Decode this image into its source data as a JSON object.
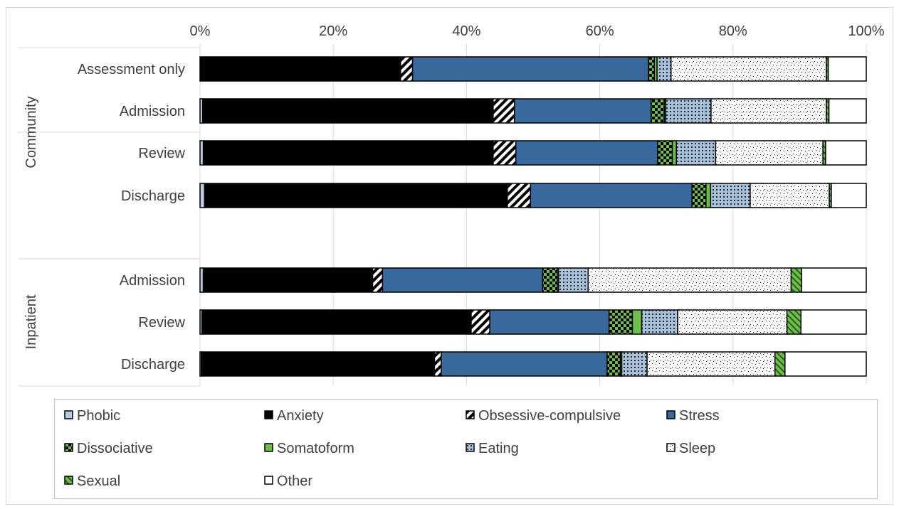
{
  "chart_data": {
    "type": "bar",
    "orientation": "horizontal",
    "stacked": "percent",
    "xlim": [
      0,
      100
    ],
    "x_ticks": [
      "0%",
      "20%",
      "40%",
      "60%",
      "80%",
      "100%"
    ],
    "grid": true,
    "legend_position": "bottom",
    "groups": [
      {
        "label": "Community",
        "categories": [
          "Assessment only",
          "Admission",
          "Review",
          "Discharge"
        ]
      },
      {
        "label": "Inpatient",
        "categories": [
          "Admission",
          "Review",
          "Discharge"
        ]
      }
    ],
    "categories": [
      "Assessment only",
      "Admission",
      "Review",
      "Discharge",
      "Admission",
      "Review",
      "Discharge"
    ],
    "series": [
      {
        "name": "Phobic",
        "color": "#b7cbe0",
        "pattern": "solid",
        "values": [
          0,
          0.4,
          0.5,
          0.7,
          0.5,
          0.3,
          0.2
        ]
      },
      {
        "name": "Anxiety",
        "color": "#000000",
        "pattern": "solid",
        "values": [
          30.1,
          43.6,
          43.5,
          45.9,
          25.7,
          40.4,
          35.0
        ]
      },
      {
        "name": "Obsessive-compulsive",
        "color": "#ffffff",
        "pattern": "diagonal-stripes",
        "values": [
          1.8,
          3.2,
          3.4,
          3.5,
          1.5,
          2.8,
          1.0
        ]
      },
      {
        "name": "Stress",
        "color": "#38689c",
        "pattern": "solid",
        "values": [
          35.4,
          20.5,
          21.3,
          24.5,
          24.3,
          17.9,
          24.9
        ]
      },
      {
        "name": "Dissociative",
        "color": "#6cc04a",
        "pattern": "checker",
        "values": [
          0.9,
          2.0,
          2.2,
          2.1,
          2.2,
          3.5,
          2.0
        ]
      },
      {
        "name": "Somatoform",
        "color": "#6cc04a",
        "pattern": "solid",
        "values": [
          0.4,
          0.2,
          0.6,
          0.7,
          0.2,
          1.4,
          0.2
        ]
      },
      {
        "name": "Eating",
        "color": "#a9c0d6",
        "pattern": "dots",
        "values": [
          2.1,
          6.8,
          5.9,
          6.0,
          4.5,
          5.4,
          3.8
        ]
      },
      {
        "name": "Sleep",
        "color": "#ffffff",
        "pattern": "speckle",
        "values": [
          23.3,
          17.3,
          16.1,
          12.0,
          30.8,
          16.4,
          19.2
        ]
      },
      {
        "name": "Sexual",
        "color": "#6cc04a",
        "pattern": "zigzag",
        "values": [
          0.3,
          0.4,
          0.4,
          0.3,
          1.6,
          2.1,
          1.5
        ]
      },
      {
        "name": "Other",
        "color": "#ffffff",
        "pattern": "solid",
        "values": [
          5.7,
          5.6,
          6.1,
          5.3,
          9.8,
          9.8,
          12.2
        ]
      }
    ]
  }
}
